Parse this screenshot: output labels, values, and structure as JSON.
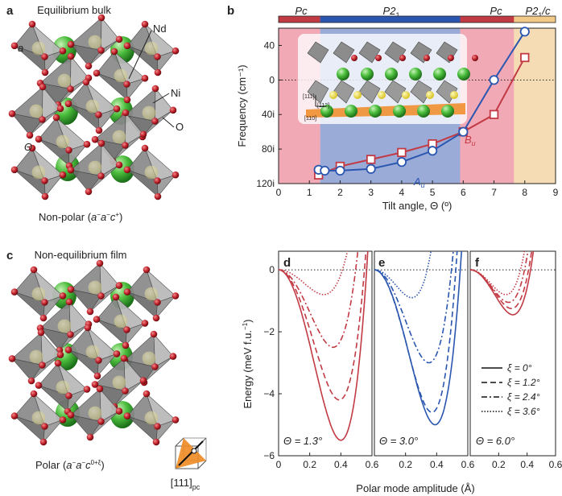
{
  "panel_a": {
    "letter": "a",
    "title": "Equilibrium bulk",
    "label_nd": "Nd",
    "label_ni": "Ni",
    "label_o": "O",
    "label_theta": "Θ",
    "caption_prefix": "Non-polar (",
    "caption_tilt": "a",
    "caption_sup1": "−",
    "caption_tilt2": "a",
    "caption_sup2": "−",
    "caption_tilt3": "c",
    "caption_sup3": "+",
    "caption_suffix": ")"
  },
  "panel_c": {
    "letter": "c",
    "title": "Non-equilibrium film",
    "caption_prefix": "Polar (",
    "caption_tilt": "a",
    "caption_sup1": "−",
    "caption_tilt2": "a",
    "caption_sup2": "−",
    "caption_tilt3": "c",
    "caption_sup3": "0+ξ",
    "caption_suffix": ")",
    "direction_label": "[111]",
    "direction_sub": "pc"
  },
  "panel_b": {
    "letter": "b",
    "phases": [
      "Pc",
      "P2",
      "1",
      "Pc",
      "P2",
      "1",
      "/c"
    ],
    "inset_dir_a": "[111]",
    "inset_dir_b": "[112]",
    "inset_dir_c": "[110]",
    "series_label_a": "A",
    "series_label_a_sub": "u",
    "series_label_b": "B",
    "series_label_b_sub": "u",
    "colors": {
      "a_series": "#2a56b0",
      "b_series": "#c23a44",
      "pink": "#f2a9b6",
      "blue": "#9aabd8",
      "orange": "#f6dcb4"
    }
  },
  "panels_def": {
    "letters": [
      "d",
      "e",
      "f"
    ],
    "annotations": [
      "Θ = 1.3°",
      "Θ = 3.0°",
      "Θ = 6.0°"
    ],
    "ylabel": "Energy (meV f.u.",
    "ylabel_sup": "−1",
    "ylabel_end": ")",
    "xlabel": "Polar mode amplitude (Å)",
    "legend": [
      "ξ = 0°",
      "ξ = 1.2°",
      "ξ = 2.4°",
      "ξ = 3.6°"
    ]
  },
  "chart_data": [
    {
      "type": "line",
      "title": "",
      "xlabel": "Tilt angle, Θ (º)",
      "ylabel": "Frequency (cm⁻¹)",
      "xlim": [
        0,
        9
      ],
      "x_ticks": [
        "0",
        "1",
        "2",
        "3",
        "4",
        "5",
        "6",
        "7",
        "8",
        "9"
      ],
      "y_ticks": [
        {
          "v": 40,
          "t": "40"
        },
        {
          "v": 0,
          "t": "0"
        },
        {
          "v": -40,
          "t": "40i"
        },
        {
          "v": -80,
          "t": "80i"
        },
        {
          "v": -120,
          "t": "120i"
        }
      ],
      "ylim": [
        -120,
        60
      ],
      "phase_regions": [
        {
          "from": 0,
          "to": 1.35,
          "color": "pink"
        },
        {
          "from": 1.35,
          "to": 5.9,
          "color": "blue"
        },
        {
          "from": 5.9,
          "to": 7.65,
          "color": "pink"
        },
        {
          "from": 7.65,
          "to": 9,
          "color": "orange"
        }
      ],
      "series": [
        {
          "name": "Au",
          "marker": "circle",
          "x": [
            1.3,
            1.5,
            2,
            3,
            4,
            5,
            6,
            7,
            8
          ],
          "y": [
            -104,
            -105,
            -105,
            -103,
            -95,
            -82,
            -60,
            0,
            56
          ]
        },
        {
          "name": "Bu",
          "marker": "square",
          "x": [
            1.3,
            2,
            3,
            4,
            5,
            6,
            7,
            8
          ],
          "y": [
            -110,
            -100,
            -92,
            -84,
            -74,
            -60,
            -40,
            26
          ]
        }
      ]
    },
    {
      "type": "line",
      "title": "d",
      "xlabel": "Polar mode amplitude (Å)",
      "ylabel": "Energy (meV f.u.-1)",
      "xlim": [
        0,
        0.6
      ],
      "ylim": [
        -6,
        0.6
      ],
      "x_ticks": [
        "0",
        "0.2",
        "0.4",
        "0.6"
      ],
      "y_ticks": [
        {
          "v": 0,
          "t": "0"
        },
        {
          "v": -2,
          "t": "−2"
        },
        {
          "v": -4,
          "t": "−4"
        },
        {
          "v": -6,
          "t": "−6"
        }
      ],
      "color": "#c23a44",
      "series": [
        {
          "name": "ξ = 0°",
          "min_x": 0.4,
          "min_y": -5.5
        },
        {
          "name": "ξ = 1.2°",
          "min_x": 0.39,
          "min_y": -4.2
        },
        {
          "name": "ξ = 2.4°",
          "min_x": 0.35,
          "min_y": -2.5
        },
        {
          "name": "ξ = 3.6°",
          "min_x": 0.29,
          "min_y": -0.8
        }
      ]
    },
    {
      "type": "line",
      "title": "e",
      "xlabel": "Polar mode amplitude (Å)",
      "ylabel": "",
      "xlim": [
        0,
        0.6
      ],
      "ylim": [
        -6,
        0.6
      ],
      "x_ticks": [
        "0",
        "0.2",
        "0.4",
        "0.6"
      ],
      "color": "#2a56b0",
      "series": [
        {
          "name": "ξ = 0°",
          "min_x": 0.39,
          "min_y": -5.0
        },
        {
          "name": "ξ = 1.2°",
          "min_x": 0.37,
          "min_y": -4.6
        },
        {
          "name": "ξ = 2.4°",
          "min_x": 0.35,
          "min_y": -3.0
        },
        {
          "name": "ξ = 3.6°",
          "min_x": 0.24,
          "min_y": -0.9
        }
      ]
    },
    {
      "type": "line",
      "title": "f",
      "xlabel": "Polar mode amplitude (Å)",
      "ylabel": "",
      "xlim": [
        0,
        0.6
      ],
      "ylim": [
        -6,
        0.6
      ],
      "x_ticks": [
        "0",
        "0.2",
        "0.4",
        "0.6"
      ],
      "color": "#c23a44",
      "series": [
        {
          "name": "ξ = 0°",
          "min_x": 0.3,
          "min_y": -1.45
        },
        {
          "name": "ξ = 1.2°",
          "min_x": 0.29,
          "min_y": -1.25
        },
        {
          "name": "ξ = 2.4°",
          "min_x": 0.27,
          "min_y": -1.05
        },
        {
          "name": "ξ = 3.6°",
          "min_x": 0.25,
          "min_y": -0.8
        }
      ]
    }
  ]
}
